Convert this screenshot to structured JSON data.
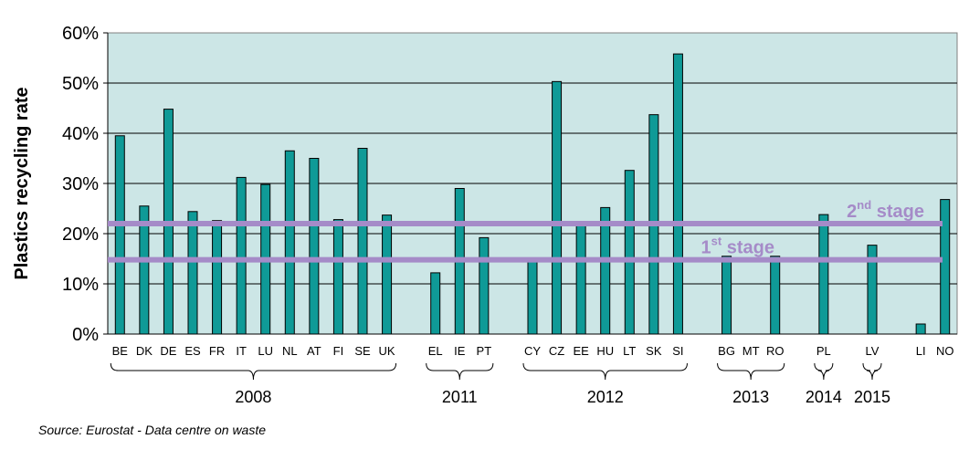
{
  "chart_data": {
    "type": "bar",
    "ylabel": "Plastics recycling rate",
    "ylim": [
      0,
      60
    ],
    "yticks": [
      "0%",
      "10%",
      "20%",
      "30%",
      "40%",
      "50%",
      "60%"
    ],
    "categories": [
      "BE",
      "DK",
      "DE",
      "ES",
      "FR",
      "IT",
      "LU",
      "NL",
      "AT",
      "FI",
      "SE",
      "UK",
      "EL",
      "IE",
      "PT",
      "CY",
      "CZ",
      "EE",
      "HU",
      "LT",
      "SK",
      "SI",
      "BG",
      "MT",
      "RO",
      "PL",
      "LV",
      "LI",
      "NO"
    ],
    "values": [
      39.5,
      25.5,
      44.8,
      24.4,
      22.6,
      31.2,
      29.8,
      36.5,
      35,
      22.8,
      37,
      23.7,
      12.2,
      29,
      19.2,
      14.5,
      50.3,
      22,
      25.2,
      32.6,
      43.7,
      55.8,
      15.5,
      null,
      15.5,
      23.8,
      17.7,
      2,
      26.8
    ],
    "groups": [
      {
        "label": "2008",
        "from": "BE",
        "to": "UK"
      },
      {
        "label": "2011",
        "from": "EL",
        "to": "PT"
      },
      {
        "label": "2012",
        "from": "CY",
        "to": "SI"
      },
      {
        "label": "2013",
        "from": "BG",
        "to": "RO"
      },
      {
        "label": "2014",
        "from": "PL",
        "to": "PL"
      },
      {
        "label": "2015",
        "from": "LV",
        "to": "LV"
      }
    ],
    "reference_lines": [
      {
        "label_main": "2",
        "label_sup": "nd",
        "label_rest": " stage",
        "value": 22
      },
      {
        "label_main": "1",
        "label_sup": "st",
        "label_rest": " stage",
        "value": 14.8
      }
    ],
    "colors": {
      "bar": "#0f9a97",
      "bar_edge": "#000000",
      "plot_bg": "#cce6e6",
      "reference_line": "#a58bc8"
    },
    "grid": "horizontal"
  },
  "source": "Source: Eurostat - Data centre on waste"
}
